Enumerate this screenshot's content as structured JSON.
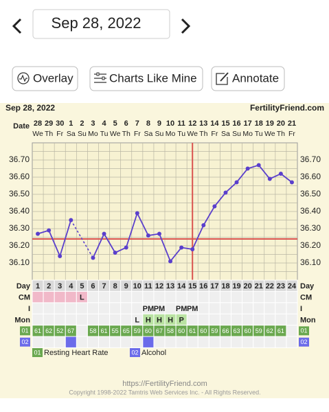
{
  "nav": {
    "date": "Sep 28, 2022"
  },
  "toolbar": {
    "buttons": [
      "Overlay",
      "Charts Like Mine",
      "Annotate"
    ]
  },
  "chart_data": {
    "type": "line",
    "title": "Sep 28, 2022",
    "source": "FertilityFriend.com",
    "date_label": "Date",
    "categories": [
      "28",
      "29",
      "30",
      "1",
      "2",
      "3",
      "4",
      "5",
      "6",
      "7",
      "8",
      "9",
      "10",
      "11",
      "12",
      "13",
      "14",
      "15",
      "16",
      "17",
      "18",
      "19",
      "20",
      "21"
    ],
    "weekdays": [
      "We",
      "Th",
      "Fr",
      "Sa",
      "Su",
      "Mo",
      "Tu",
      "We",
      "Th",
      "Fr",
      "Sa",
      "Su",
      "Mo",
      "Tu",
      "We",
      "Th",
      "Fr",
      "Sa",
      "Su",
      "Mo",
      "Tu",
      "We",
      "Th",
      "Fr"
    ],
    "values": [
      36.27,
      36.29,
      36.14,
      36.35,
      null,
      36.13,
      36.27,
      36.16,
      36.19,
      36.39,
      36.26,
      36.27,
      36.11,
      36.19,
      36.18,
      36.32,
      36.43,
      36.51,
      36.57,
      36.65,
      36.67,
      36.59,
      36.62,
      36.57
    ],
    "color": "#5a3fcc",
    "ylim": [
      36.0,
      36.8
    ],
    "yticks": [
      {
        "value": 36.1,
        "label": "36.10"
      },
      {
        "value": 36.2,
        "label": "36.20"
      },
      {
        "value": 36.3,
        "label": "36.30"
      },
      {
        "value": 36.4,
        "label": "36.40"
      },
      {
        "value": 36.5,
        "label": "36.50"
      },
      {
        "value": 36.6,
        "label": "36.60"
      },
      {
        "value": 36.7,
        "label": "36.70"
      }
    ],
    "grid": true,
    "coverline": 36.24,
    "ovulation_day": 15,
    "marker_color": "#d9534f",
    "row_labels": [
      "Day",
      "CM",
      "I",
      "Mon"
    ],
    "cycle_days": [
      1,
      2,
      3,
      4,
      5,
      6,
      7,
      8,
      9,
      10,
      11,
      12,
      13,
      14,
      15,
      16,
      17,
      18,
      19,
      20,
      21,
      22,
      23,
      24
    ],
    "period_days": [
      1,
      2,
      3,
      4,
      5
    ],
    "period_color": "#f1b9c9",
    "cm_labels": [
      null,
      null,
      null,
      null,
      "L",
      null,
      null,
      null,
      null,
      null,
      null,
      null,
      null,
      null,
      null,
      null,
      null,
      null,
      null,
      null,
      null,
      null,
      null,
      null
    ],
    "intercourse": [
      null,
      null,
      null,
      null,
      null,
      null,
      null,
      null,
      null,
      null,
      "PM",
      "PM",
      null,
      "PM",
      "PM",
      null,
      null,
      null,
      null,
      null,
      null,
      null,
      null,
      null
    ],
    "monitor": [
      null,
      null,
      null,
      null,
      null,
      null,
      null,
      null,
      null,
      "L",
      "H",
      "H",
      "H",
      "P",
      null,
      null,
      null,
      null,
      null,
      null,
      null,
      null,
      null,
      null
    ],
    "monitor_fills": [
      null,
      null,
      null,
      null,
      null,
      null,
      null,
      null,
      null,
      null,
      "#b9e2a2",
      "#b9e2a2",
      "#b9e2a2",
      "#b9e2a2",
      null,
      null,
      null,
      null,
      null,
      null,
      null,
      null,
      null,
      null
    ],
    "heart_rate": {
      "label": "01",
      "name": "Resting Heart Rate",
      "color": "#6aa84f",
      "values": [
        61,
        62,
        52,
        67,
        null,
        58,
        61,
        55,
        65,
        59,
        60,
        67,
        58,
        60,
        61,
        60,
        59,
        66,
        63,
        60,
        59,
        62,
        61,
        null
      ]
    },
    "alcohol": {
      "label": "02",
      "name": "Alcohol",
      "color": "#6b6bea",
      "days": [
        4,
        11
      ]
    }
  },
  "footer": {
    "url": "https://FertilityFriend.com",
    "copyright": "Copyright 1998-2022 Tamtris Web Services Inc. - All Rights Reserved."
  }
}
